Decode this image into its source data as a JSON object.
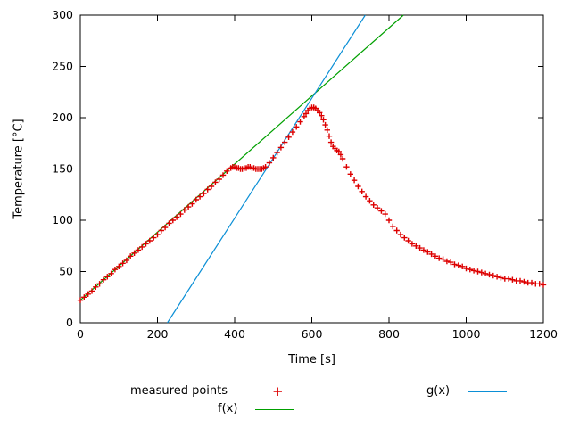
{
  "axes": {
    "xlabel": "Time [s]",
    "ylabel": "Temperature [°C]"
  },
  "legend": {
    "measured": "measured points",
    "measured_marker": "+",
    "f": "f(x)",
    "g": "g(x)"
  },
  "chart_data": {
    "type": "scatter",
    "title": "",
    "xlabel": "Time [s]",
    "ylabel": "Temperature [°C]",
    "xlim": [
      0,
      1200
    ],
    "ylim": [
      0,
      300
    ],
    "xtick_step": 200,
    "ytick_step": 50,
    "grid": false,
    "legend_position": "below",
    "series": [
      {
        "name": "measured points",
        "type": "points",
        "marker": "plus",
        "color": "#dd0000",
        "points": [
          [
            0,
            22
          ],
          [
            10,
            25
          ],
          [
            20,
            28
          ],
          [
            30,
            31
          ],
          [
            40,
            35
          ],
          [
            50,
            38
          ],
          [
            60,
            42
          ],
          [
            70,
            45
          ],
          [
            80,
            48
          ],
          [
            90,
            52
          ],
          [
            100,
            55
          ],
          [
            110,
            58
          ],
          [
            120,
            61
          ],
          [
            130,
            65
          ],
          [
            140,
            68
          ],
          [
            150,
            71
          ],
          [
            160,
            74
          ],
          [
            170,
            77
          ],
          [
            180,
            80
          ],
          [
            190,
            83
          ],
          [
            200,
            86
          ],
          [
            210,
            90
          ],
          [
            220,
            93
          ],
          [
            230,
            97
          ],
          [
            240,
            100
          ],
          [
            250,
            103
          ],
          [
            260,
            106
          ],
          [
            270,
            110
          ],
          [
            280,
            113
          ],
          [
            290,
            116
          ],
          [
            300,
            120
          ],
          [
            310,
            123
          ],
          [
            320,
            126
          ],
          [
            330,
            130
          ],
          [
            340,
            133
          ],
          [
            350,
            137
          ],
          [
            360,
            140
          ],
          [
            370,
            144
          ],
          [
            380,
            148
          ],
          [
            390,
            151
          ],
          [
            395,
            152
          ],
          [
            400,
            152
          ],
          [
            405,
            151
          ],
          [
            410,
            151
          ],
          [
            415,
            150
          ],
          [
            420,
            150
          ],
          [
            425,
            151
          ],
          [
            430,
            151
          ],
          [
            435,
            152
          ],
          [
            440,
            152
          ],
          [
            445,
            151
          ],
          [
            450,
            151
          ],
          [
            455,
            150
          ],
          [
            460,
            150
          ],
          [
            465,
            150
          ],
          [
            470,
            150
          ],
          [
            475,
            151
          ],
          [
            480,
            152
          ],
          [
            490,
            156
          ],
          [
            500,
            161
          ],
          [
            510,
            166
          ],
          [
            520,
            171
          ],
          [
            530,
            176
          ],
          [
            540,
            181
          ],
          [
            550,
            186
          ],
          [
            560,
            191
          ],
          [
            570,
            196
          ],
          [
            580,
            201
          ],
          [
            585,
            204
          ],
          [
            590,
            207
          ],
          [
            595,
            209
          ],
          [
            600,
            210
          ],
          [
            605,
            210
          ],
          [
            610,
            209
          ],
          [
            615,
            207
          ],
          [
            620,
            205
          ],
          [
            625,
            202
          ],
          [
            630,
            198
          ],
          [
            635,
            193
          ],
          [
            640,
            188
          ],
          [
            645,
            182
          ],
          [
            650,
            176
          ],
          [
            655,
            172
          ],
          [
            660,
            170
          ],
          [
            665,
            168
          ],
          [
            670,
            167
          ],
          [
            675,
            164
          ],
          [
            680,
            160
          ],
          [
            690,
            152
          ],
          [
            700,
            145
          ],
          [
            710,
            139
          ],
          [
            720,
            133
          ],
          [
            730,
            128
          ],
          [
            740,
            123
          ],
          [
            750,
            119
          ],
          [
            760,
            115
          ],
          [
            770,
            112
          ],
          [
            780,
            109
          ],
          [
            790,
            106
          ],
          [
            800,
            100
          ],
          [
            810,
            94
          ],
          [
            820,
            90
          ],
          [
            830,
            86
          ],
          [
            840,
            83
          ],
          [
            850,
            80
          ],
          [
            860,
            77
          ],
          [
            870,
            75
          ],
          [
            880,
            73
          ],
          [
            890,
            71
          ],
          [
            900,
            69
          ],
          [
            910,
            67
          ],
          [
            920,
            65
          ],
          [
            930,
            63
          ],
          [
            940,
            62
          ],
          [
            950,
            60
          ],
          [
            960,
            59
          ],
          [
            970,
            57
          ],
          [
            980,
            56
          ],
          [
            990,
            55
          ],
          [
            1000,
            53
          ],
          [
            1010,
            52
          ],
          [
            1020,
            51
          ],
          [
            1030,
            50
          ],
          [
            1040,
            49
          ],
          [
            1050,
            48
          ],
          [
            1060,
            47
          ],
          [
            1070,
            46
          ],
          [
            1080,
            45
          ],
          [
            1090,
            44
          ],
          [
            1100,
            43
          ],
          [
            1110,
            43
          ],
          [
            1120,
            42
          ],
          [
            1130,
            41
          ],
          [
            1140,
            41
          ],
          [
            1150,
            40
          ],
          [
            1160,
            39
          ],
          [
            1170,
            39
          ],
          [
            1180,
            38
          ],
          [
            1190,
            38
          ],
          [
            1200,
            37
          ]
        ]
      },
      {
        "name": "f(x)",
        "type": "line",
        "color": "#00a000",
        "slope": 0.332,
        "intercept": 22
      },
      {
        "name": "g(x)",
        "type": "line",
        "color": "#0b8fd6",
        "slope": 0.585,
        "intercept": -132
      }
    ]
  }
}
